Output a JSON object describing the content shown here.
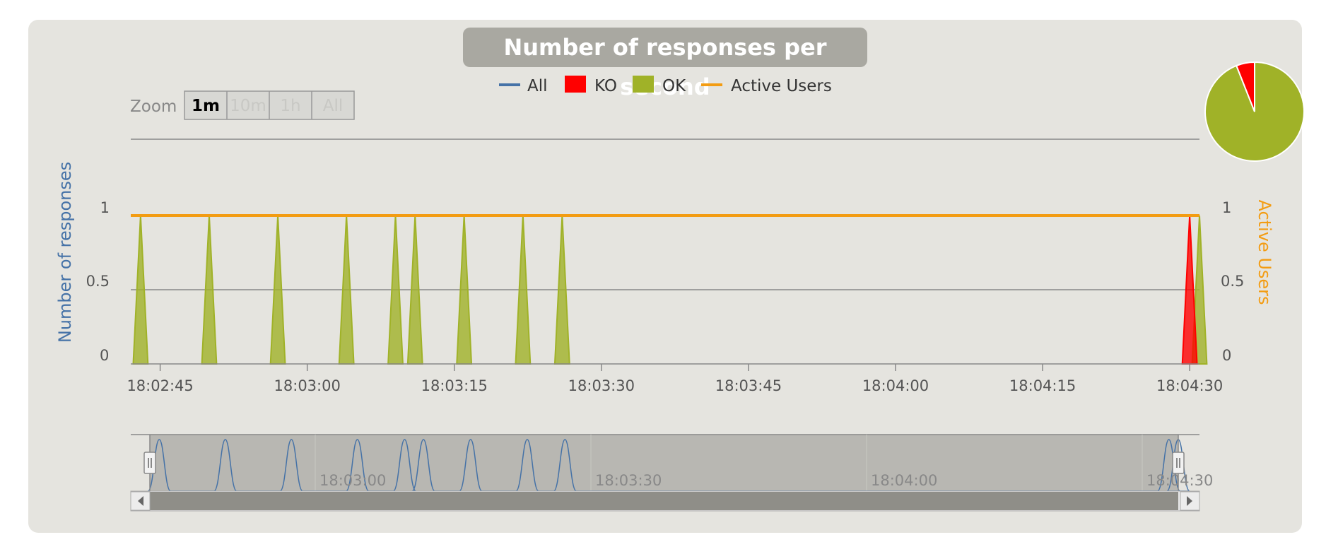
{
  "title": "Number of responses per second",
  "zoom": {
    "label": "Zoom",
    "buttons": [
      "1m",
      "10m",
      "1h",
      "All"
    ],
    "active": "1m"
  },
  "legend": [
    {
      "label": "All",
      "color": "#4572a7",
      "marker": "line"
    },
    {
      "label": "KO",
      "color": "#ff0000",
      "marker": "box"
    },
    {
      "label": "OK",
      "color": "#a0b228",
      "marker": "box"
    },
    {
      "label": "Active Users",
      "color": "#f39c12",
      "marker": "line"
    }
  ],
  "colors": {
    "all": "#4572a7",
    "ko": "#ff0000",
    "ok": "#a0b228",
    "active_users": "#f39c12"
  },
  "chart_data": {
    "type": "area",
    "title": "Number of responses per second",
    "ylabel": "Number of responses",
    "y2label": "Active Users",
    "ylim": [
      0,
      1
    ],
    "y2lim": [
      0,
      1
    ],
    "yticks": [
      "0",
      "0.5",
      "1"
    ],
    "y2ticks": [
      "0",
      "0.5",
      "1"
    ],
    "xlim": [
      "18:02:42",
      "18:04:31"
    ],
    "xticks": [
      "18:02:45",
      "18:03:00",
      "18:03:15",
      "18:03:30",
      "18:03:45",
      "18:04:00",
      "18:04:15",
      "18:04:30"
    ],
    "grid": true,
    "legend_position": "top-center",
    "series": [
      {
        "name": "OK",
        "type": "area",
        "points": [
          [
            "18:02:43",
            1
          ],
          [
            "18:02:50",
            1
          ],
          [
            "18:02:57",
            1
          ],
          [
            "18:03:04",
            1
          ],
          [
            "18:03:09",
            1
          ],
          [
            "18:03:11",
            1
          ],
          [
            "18:03:16",
            1
          ],
          [
            "18:03:22",
            1
          ],
          [
            "18:03:26",
            1
          ],
          [
            "18:04:31",
            1
          ]
        ]
      },
      {
        "name": "KO",
        "type": "area",
        "points": [
          [
            "18:04:30",
            1
          ]
        ]
      },
      {
        "name": "Active Users",
        "type": "line",
        "constant": 1
      }
    ]
  },
  "navigator": {
    "labels": [
      "18:03:00",
      "18:03:30",
      "18:04:00",
      "18:04:30"
    ]
  },
  "pie": {
    "slices": [
      {
        "name": "OK",
        "value": 94,
        "color": "#a0b228"
      },
      {
        "name": "KO",
        "value": 6,
        "color": "#ff0000"
      }
    ]
  }
}
